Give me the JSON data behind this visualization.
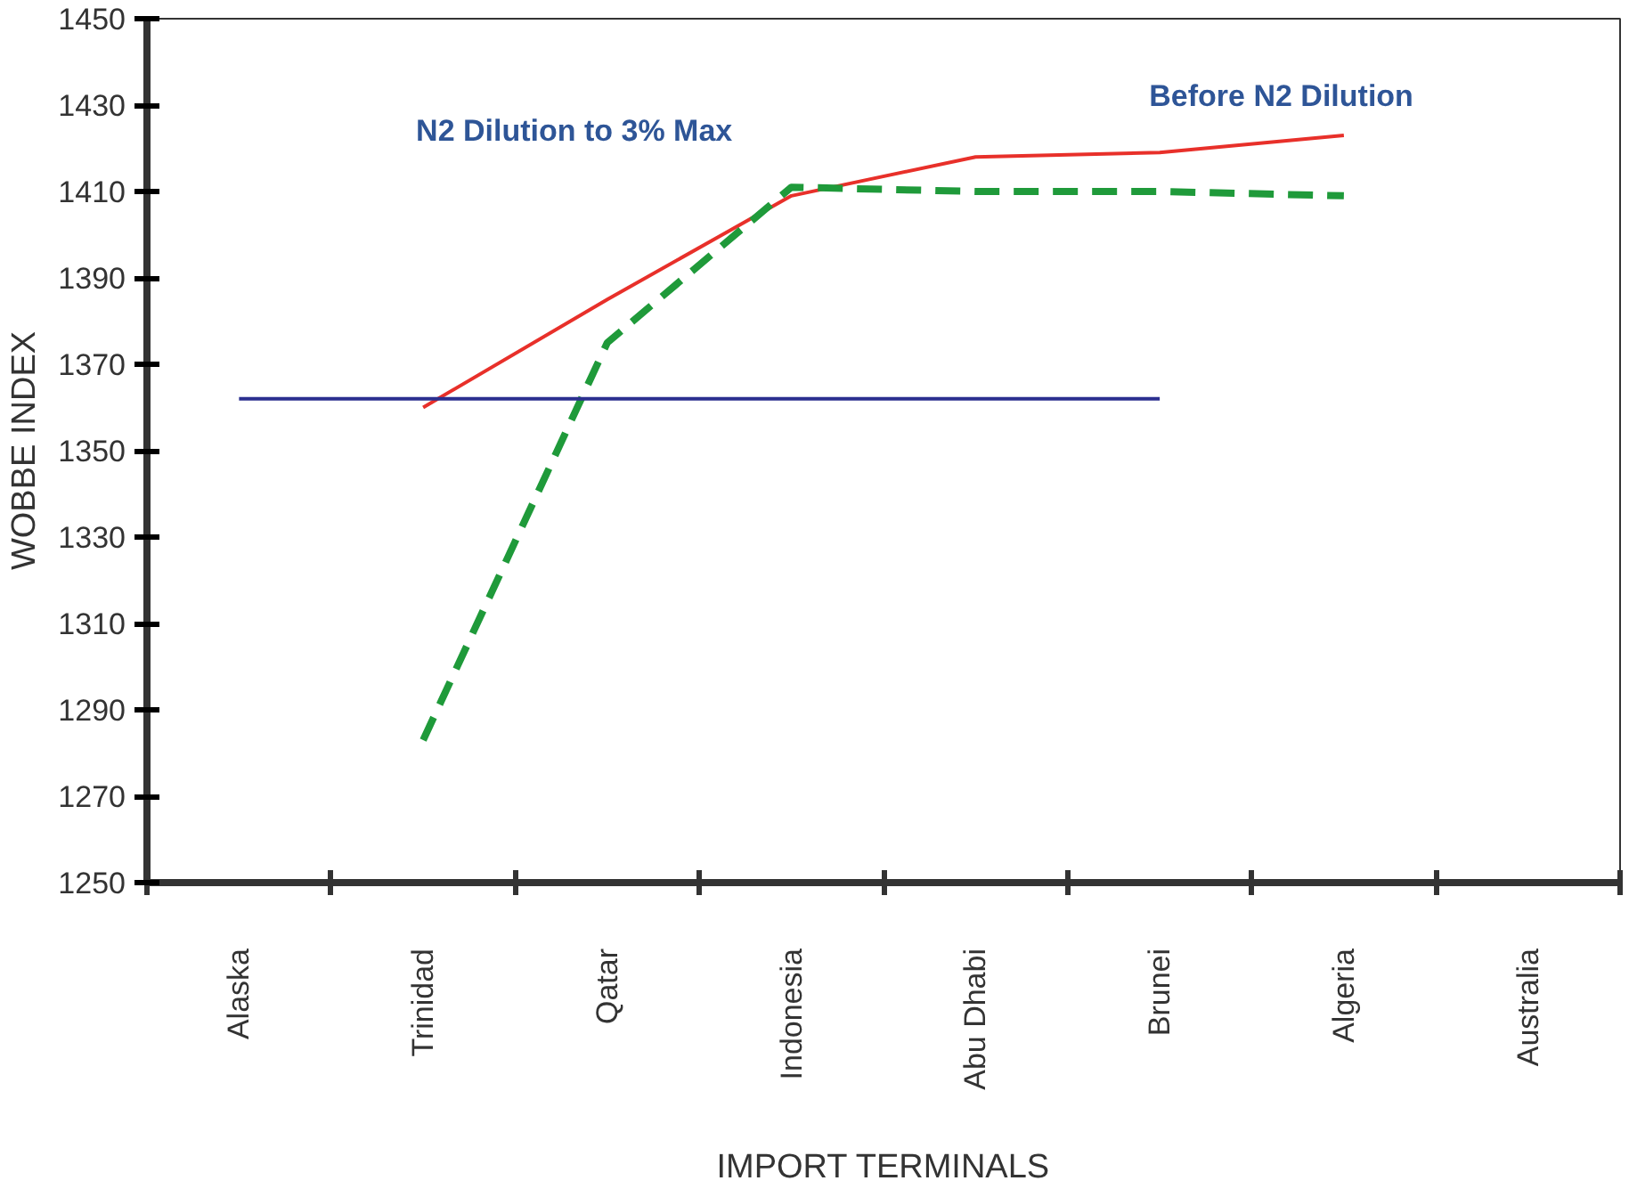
{
  "chart_data": {
    "type": "line",
    "xlabel": "IMPORT TERMINALS",
    "ylabel": "WOBBE INDEX",
    "categories": [
      "Alaska",
      "Trinidad",
      "Qatar",
      "Indonesia",
      "Abu Dhabi",
      "Brunei",
      "Algeria",
      "Australia"
    ],
    "ylim": [
      1250,
      1450
    ],
    "yticks": [
      1250,
      1270,
      1290,
      1310,
      1330,
      1350,
      1370,
      1390,
      1410,
      1430,
      1450
    ],
    "grid": false,
    "series": [
      {
        "color": "#e8302a",
        "line_style": "solid",
        "values": [
          null,
          1360,
          1385,
          1409,
          1418,
          1419,
          1423,
          null
        ]
      },
      {
        "color": "#1f9a3a",
        "line_style": "dashed",
        "values": [
          null,
          1283,
          1375,
          1411,
          1410,
          1410,
          1409,
          null
        ]
      },
      {
        "color": "#2b2f8f",
        "line_style": "solid",
        "values": [
          1362,
          1362,
          1362,
          1362,
          1362,
          1362,
          null,
          null
        ]
      }
    ],
    "annotations": [
      "N2 Dilution to 3% Max",
      "Before N2 Dilution"
    ]
  }
}
